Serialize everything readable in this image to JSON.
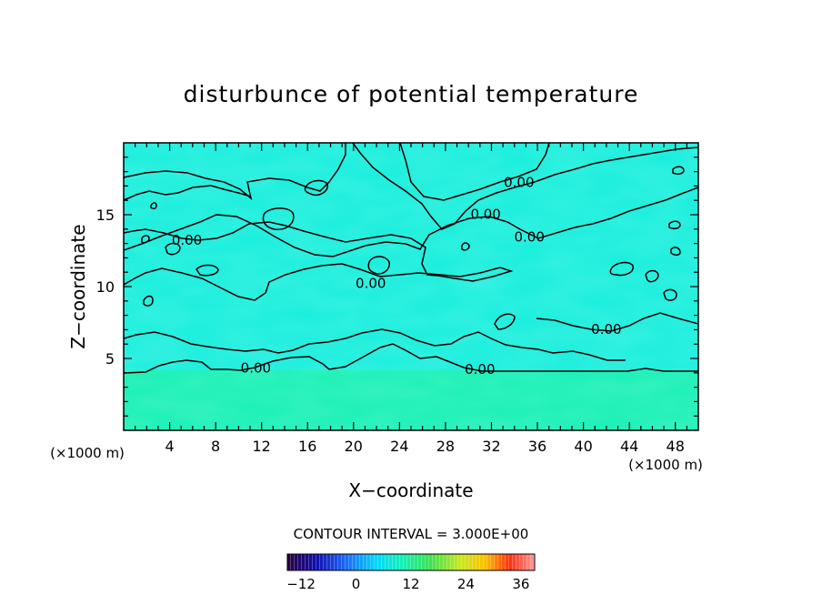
{
  "chart_data": {
    "type": "heatmap",
    "title": "disturbunce of potential temperature",
    "xlabel": "X−coordinate",
    "ylabel": "Z−coordinate",
    "x_unit": "(×1000 m)",
    "y_unit": "(×1000 m)",
    "xlim": [
      0,
      50
    ],
    "ylim": [
      0,
      20
    ],
    "x_ticks": [
      4,
      8,
      12,
      16,
      20,
      24,
      28,
      32,
      36,
      40,
      44,
      48
    ],
    "y_ticks": [
      5,
      10,
      15
    ],
    "contour_interval_text": "CONTOUR INTERVAL = 3.000E+00",
    "contour_label": "0.00",
    "contour_label_positions": [
      {
        "x": 5.5,
        "y": 13.3
      },
      {
        "x": 11.5,
        "y": 4.4
      },
      {
        "x": 21.5,
        "y": 10.3
      },
      {
        "x": 31.5,
        "y": 15.1
      },
      {
        "x": 34.4,
        "y": 17.3
      },
      {
        "x": 35.3,
        "y": 13.5
      },
      {
        "x": 31.0,
        "y": 4.3
      },
      {
        "x": 42.0,
        "y": 7.1
      }
    ],
    "field_description_levels": {
      "lower_layer_z_max": 4.0,
      "lower_value": 1.0,
      "upper_value": 0.0
    },
    "colorbar": {
      "min": -15,
      "max": 39,
      "tick_labels": [
        "−12",
        "0",
        "12",
        "24",
        "36"
      ],
      "tick_values": [
        -12,
        0,
        12,
        24,
        36
      ]
    }
  }
}
